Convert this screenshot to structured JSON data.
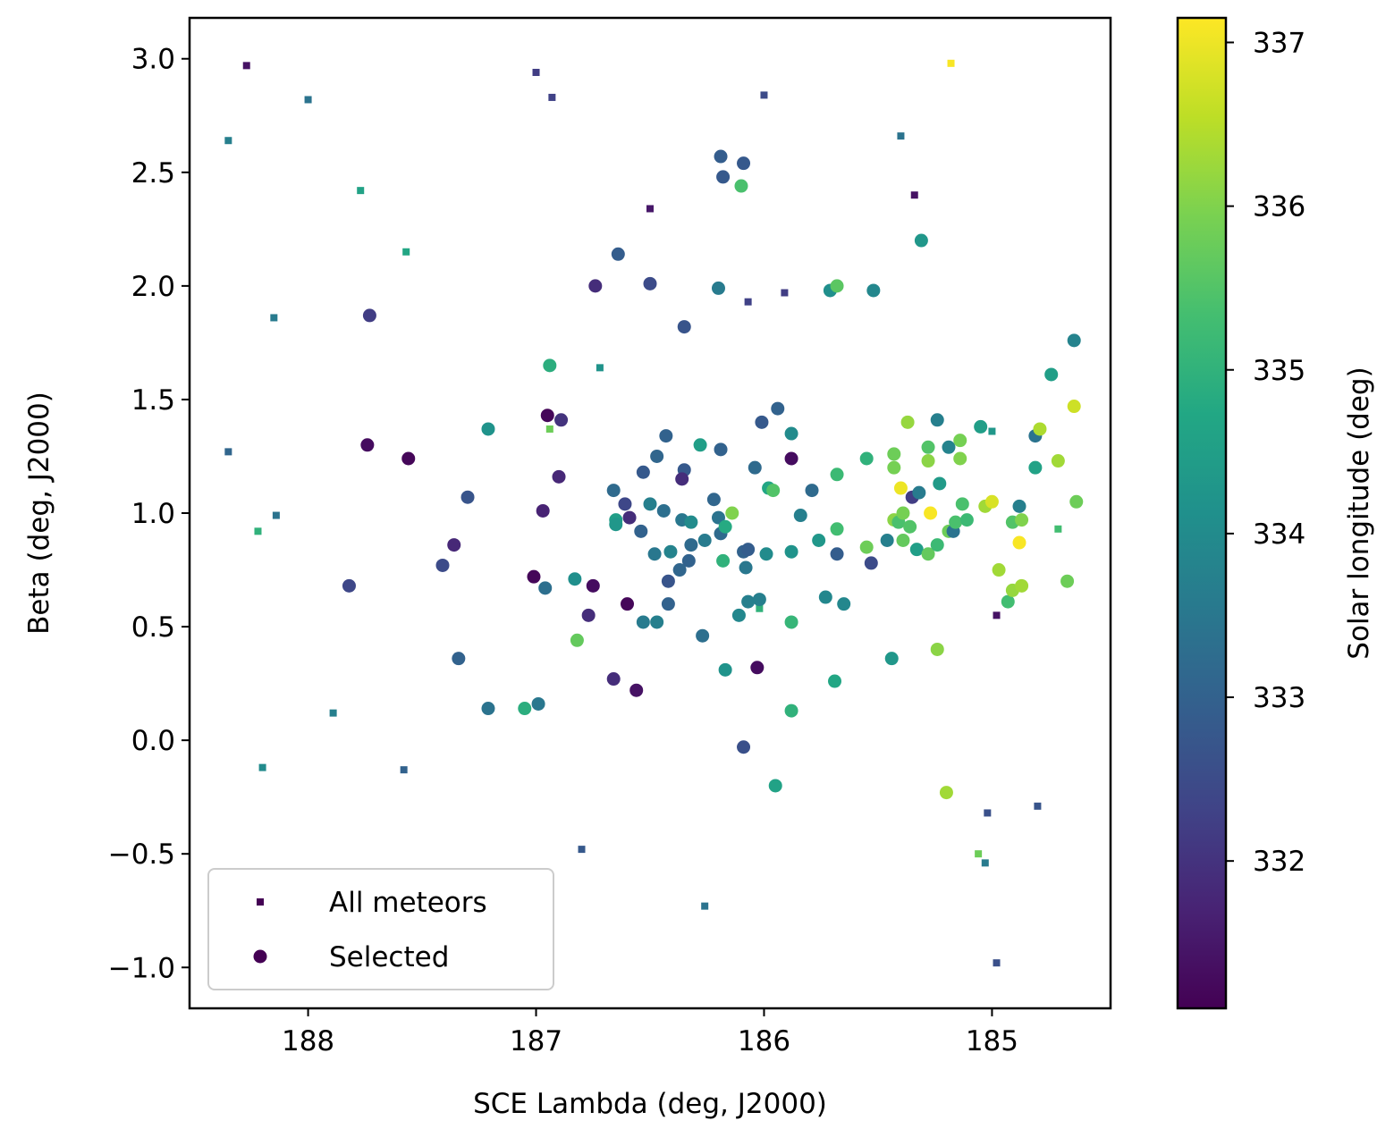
{
  "chart_data": {
    "type": "scatter",
    "xlabel": "SCE Lambda (deg, J2000)",
    "ylabel": "Beta (deg, J2000)",
    "x_inverted": true,
    "xlim": [
      188.52,
      184.48
    ],
    "ylim": [
      -1.18,
      3.18
    ],
    "xticks": [
      188,
      187,
      186,
      185
    ],
    "xtick_labels": [
      "188",
      "187",
      "186",
      "185"
    ],
    "yticks": [
      -1.0,
      -0.5,
      0.0,
      0.5,
      1.0,
      1.5,
      2.0,
      2.5,
      3.0
    ],
    "ytick_labels": [
      "−1.0",
      "−0.5",
      "0.0",
      "0.5",
      "1.0",
      "1.5",
      "2.0",
      "2.5",
      "3.0"
    ],
    "grid": false,
    "legend": {
      "placement": "lower-left",
      "entries": [
        {
          "label": "All meteors",
          "marker": "square"
        },
        {
          "label": "Selected",
          "marker": "circle"
        }
      ]
    },
    "colorbar": {
      "label": "Solar longitude (deg)",
      "colormap": "viridis",
      "range": [
        331.1,
        337.15
      ],
      "ticks": [
        332,
        333,
        334,
        335,
        336,
        337
      ],
      "tick_labels": [
        "332",
        "333",
        "334",
        "335",
        "336",
        "337"
      ]
    },
    "series": [
      {
        "marker": "square",
        "points": [
          [
            188.27,
            2.97,
            331.4
          ],
          [
            188.0,
            2.82,
            333.4
          ],
          [
            188.35,
            2.64,
            333.7
          ],
          [
            187.77,
            2.42,
            334.6
          ],
          [
            187.57,
            2.15,
            334.7
          ],
          [
            188.15,
            1.86,
            333.6
          ],
          [
            188.35,
            1.27,
            333.1
          ],
          [
            188.14,
            0.99,
            333.4
          ],
          [
            187.89,
            0.12,
            333.7
          ],
          [
            187.58,
            -0.13,
            333.0
          ],
          [
            187.0,
            2.94,
            332.2
          ],
          [
            186.93,
            2.83,
            332.3
          ],
          [
            186.72,
            1.64,
            334.2
          ],
          [
            186.94,
            1.37,
            335.8
          ],
          [
            188.22,
            0.92,
            335.0
          ],
          [
            186.8,
            -0.48,
            332.8
          ],
          [
            186.5,
            2.34,
            331.5
          ],
          [
            186.0,
            2.84,
            332.5
          ],
          [
            186.07,
            1.93,
            332.3
          ],
          [
            185.91,
            1.97,
            332.2
          ],
          [
            186.02,
            0.58,
            335.0
          ],
          [
            188.2,
            -0.12,
            334.0
          ],
          [
            186.26,
            -0.73,
            333.4
          ],
          [
            185.4,
            2.66,
            333.4
          ],
          [
            185.34,
            2.4,
            331.4
          ],
          [
            185.18,
            2.98,
            337.1
          ],
          [
            185.0,
            1.36,
            334.3
          ],
          [
            184.71,
            0.93,
            335.3
          ],
          [
            184.98,
            0.55,
            331.4
          ],
          [
            185.02,
            -0.32,
            332.6
          ],
          [
            184.8,
            -0.29,
            332.7
          ],
          [
            185.06,
            -0.5,
            335.8
          ],
          [
            185.03,
            -0.54,
            333.6
          ],
          [
            184.98,
            -0.98,
            332.6
          ]
        ]
      },
      {
        "marker": "circle",
        "points": [
          [
            187.73,
            1.87,
            332.2
          ],
          [
            187.74,
            1.3,
            331.3
          ],
          [
            187.56,
            1.24,
            331.2
          ],
          [
            187.82,
            0.68,
            332.4
          ],
          [
            187.3,
            1.07,
            332.7
          ],
          [
            187.36,
            0.86,
            331.8
          ],
          [
            187.41,
            0.77,
            332.5
          ],
          [
            187.34,
            0.36,
            333.0
          ],
          [
            187.21,
            1.37,
            334.2
          ],
          [
            187.21,
            0.14,
            333.4
          ],
          [
            186.94,
            1.65,
            334.9
          ],
          [
            186.95,
            1.43,
            331.2
          ],
          [
            186.89,
            1.41,
            332.0
          ],
          [
            186.9,
            1.16,
            331.8
          ],
          [
            186.97,
            1.01,
            331.7
          ],
          [
            187.01,
            0.72,
            331.2
          ],
          [
            186.96,
            0.67,
            333.3
          ],
          [
            186.99,
            0.16,
            333.5
          ],
          [
            187.05,
            0.14,
            334.9
          ],
          [
            186.83,
            0.71,
            334.1
          ],
          [
            186.77,
            0.55,
            331.9
          ],
          [
            186.75,
            0.68,
            331.3
          ],
          [
            186.82,
            0.44,
            335.7
          ],
          [
            186.74,
            2.0,
            331.9
          ],
          [
            186.64,
            2.14,
            332.9
          ],
          [
            186.5,
            2.01,
            332.5
          ],
          [
            186.35,
            1.82,
            332.7
          ],
          [
            186.66,
            1.1,
            333.2
          ],
          [
            186.61,
            1.04,
            332.4
          ],
          [
            186.65,
            0.97,
            334.5
          ],
          [
            186.65,
            0.95,
            334.3
          ],
          [
            186.59,
            0.98,
            331.9
          ],
          [
            186.54,
            0.92,
            333.0
          ],
          [
            186.53,
            1.18,
            332.8
          ],
          [
            186.5,
            1.04,
            333.7
          ],
          [
            186.47,
            1.25,
            333.1
          ],
          [
            186.44,
            1.01,
            333.3
          ],
          [
            186.48,
            0.82,
            333.5
          ],
          [
            186.41,
            0.83,
            333.8
          ],
          [
            186.42,
            0.7,
            332.7
          ],
          [
            186.42,
            0.6,
            333.0
          ],
          [
            186.53,
            0.52,
            333.6
          ],
          [
            186.47,
            0.52,
            333.7
          ],
          [
            186.6,
            0.6,
            331.2
          ],
          [
            186.66,
            0.27,
            331.9
          ],
          [
            186.56,
            0.22,
            331.4
          ],
          [
            186.43,
            1.34,
            333.0
          ],
          [
            186.35,
            1.19,
            332.8
          ],
          [
            186.36,
            1.15,
            331.9
          ],
          [
            186.36,
            0.97,
            333.5
          ],
          [
            186.32,
            0.96,
            334.0
          ],
          [
            186.32,
            0.86,
            333.2
          ],
          [
            186.33,
            0.79,
            333.0
          ],
          [
            186.37,
            0.75,
            333.1
          ],
          [
            186.28,
            1.3,
            334.5
          ],
          [
            186.26,
            0.88,
            333.6
          ],
          [
            186.27,
            0.46,
            333.3
          ],
          [
            186.22,
            1.06,
            333.1
          ],
          [
            186.2,
            0.98,
            333.4
          ],
          [
            186.19,
            0.91,
            333.2
          ],
          [
            186.17,
            0.94,
            334.8
          ],
          [
            186.18,
            0.79,
            335.0
          ],
          [
            186.17,
            0.31,
            334.2
          ],
          [
            186.19,
            1.28,
            333.0
          ],
          [
            186.19,
            2.57,
            332.9
          ],
          [
            186.18,
            2.48,
            332.8
          ],
          [
            186.2,
            1.99,
            333.6
          ],
          [
            186.09,
            2.54,
            332.8
          ],
          [
            186.1,
            2.44,
            335.4
          ],
          [
            186.14,
            1.0,
            336.0
          ],
          [
            186.11,
            0.55,
            333.9
          ],
          [
            186.09,
            0.83,
            333.0
          ],
          [
            186.07,
            0.84,
            332.9
          ],
          [
            186.08,
            0.76,
            333.5
          ],
          [
            186.07,
            0.61,
            333.7
          ],
          [
            186.09,
            -0.03,
            332.6
          ],
          [
            186.04,
            1.2,
            333.2
          ],
          [
            186.01,
            1.4,
            332.8
          ],
          [
            186.02,
            0.62,
            333.7
          ],
          [
            186.03,
            0.32,
            331.3
          ],
          [
            185.99,
            0.82,
            334.0
          ],
          [
            185.98,
            1.11,
            334.7
          ],
          [
            185.96,
            1.1,
            335.5
          ],
          [
            185.94,
            1.46,
            333.0
          ],
          [
            185.95,
            -0.2,
            334.6
          ],
          [
            185.88,
            1.35,
            334.0
          ],
          [
            185.88,
            1.24,
            331.3
          ],
          [
            185.88,
            0.83,
            334.2
          ],
          [
            185.88,
            0.52,
            335.1
          ],
          [
            185.88,
            0.13,
            335.0
          ],
          [
            185.84,
            0.99,
            333.7
          ],
          [
            185.79,
            1.1,
            333.2
          ],
          [
            185.76,
            0.88,
            334.3
          ],
          [
            185.73,
            0.63,
            333.9
          ],
          [
            185.71,
            1.98,
            334.1
          ],
          [
            185.68,
            2.0,
            335.6
          ],
          [
            185.68,
            1.17,
            335.2
          ],
          [
            185.68,
            0.93,
            335.3
          ],
          [
            185.68,
            0.82,
            332.9
          ],
          [
            185.69,
            0.26,
            334.7
          ],
          [
            185.65,
            0.6,
            333.9
          ],
          [
            185.55,
            1.24,
            335.0
          ],
          [
            185.55,
            0.85,
            335.8
          ],
          [
            185.52,
            1.98,
            333.9
          ],
          [
            185.53,
            0.78,
            332.5
          ],
          [
            185.46,
            0.88,
            333.7
          ],
          [
            185.44,
            0.36,
            334.3
          ],
          [
            185.43,
            1.26,
            335.8
          ],
          [
            185.43,
            1.2,
            335.9
          ],
          [
            185.43,
            0.97,
            336.1
          ],
          [
            185.41,
            0.96,
            335.4
          ],
          [
            185.4,
            1.11,
            337.0
          ],
          [
            185.39,
            1.0,
            335.9
          ],
          [
            185.39,
            0.88,
            335.7
          ],
          [
            185.37,
            1.4,
            336.2
          ],
          [
            185.36,
            0.94,
            335.5
          ],
          [
            185.35,
            1.07,
            332.2
          ],
          [
            185.32,
            1.09,
            333.6
          ],
          [
            185.33,
            0.84,
            334.5
          ],
          [
            185.31,
            2.2,
            334.3
          ],
          [
            185.28,
            1.29,
            335.5
          ],
          [
            185.28,
            1.23,
            336.1
          ],
          [
            185.27,
            1.0,
            337.1
          ],
          [
            185.28,
            0.82,
            335.7
          ],
          [
            185.24,
            1.41,
            333.7
          ],
          [
            185.23,
            1.13,
            334.4
          ],
          [
            185.24,
            0.86,
            335.2
          ],
          [
            185.24,
            0.4,
            336.1
          ],
          [
            185.19,
            1.29,
            333.8
          ],
          [
            185.19,
            0.92,
            335.8
          ],
          [
            185.2,
            -0.23,
            336.3
          ],
          [
            185.17,
            0.92,
            333.4
          ],
          [
            185.16,
            0.96,
            335.4
          ],
          [
            185.14,
            1.32,
            335.9
          ],
          [
            185.14,
            1.24,
            336.0
          ],
          [
            185.13,
            1.04,
            335.4
          ],
          [
            185.11,
            0.97,
            335.2
          ],
          [
            185.05,
            1.38,
            334.5
          ],
          [
            185.03,
            1.03,
            336.3
          ],
          [
            185.0,
            1.05,
            336.8
          ],
          [
            184.97,
            0.75,
            336.3
          ],
          [
            184.93,
            0.61,
            335.3
          ],
          [
            184.91,
            0.96,
            335.5
          ],
          [
            184.91,
            0.66,
            336.2
          ],
          [
            184.88,
            1.03,
            333.7
          ],
          [
            184.87,
            0.97,
            336.0
          ],
          [
            184.88,
            0.87,
            337.1
          ],
          [
            184.87,
            0.68,
            336.3
          ],
          [
            184.81,
            1.34,
            333.4
          ],
          [
            184.81,
            1.2,
            334.6
          ],
          [
            184.79,
            1.37,
            336.4
          ],
          [
            184.74,
            1.61,
            334.5
          ],
          [
            184.71,
            1.23,
            336.3
          ],
          [
            184.67,
            0.7,
            335.8
          ],
          [
            184.64,
            1.76,
            333.8
          ],
          [
            184.64,
            1.47,
            336.7
          ],
          [
            184.63,
            1.05,
            335.8
          ]
        ]
      }
    ]
  }
}
